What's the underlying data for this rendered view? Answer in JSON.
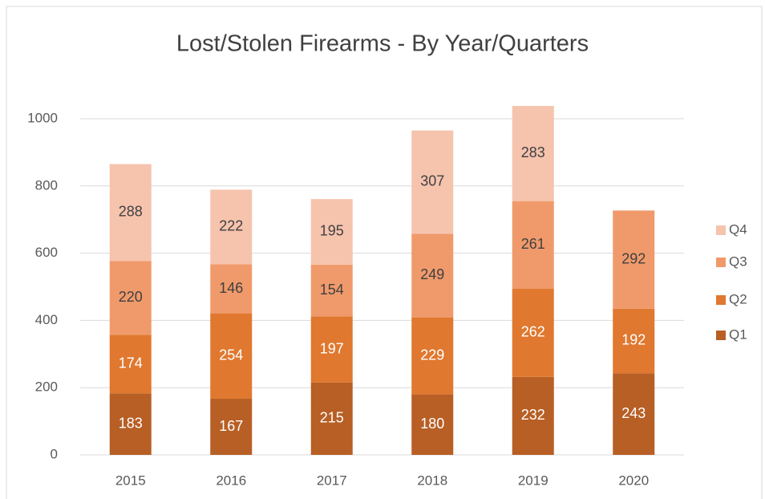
{
  "chart_data": {
    "type": "bar",
    "stacked": true,
    "title": "Lost/Stolen Firearms - By Year/Quarters",
    "categories": [
      "2015",
      "2016",
      "2017",
      "2018",
      "2019",
      "2020"
    ],
    "series": [
      {
        "name": "Q1",
        "color": "#b85f25",
        "values": [
          183,
          167,
          215,
          180,
          232,
          243
        ]
      },
      {
        "name": "Q2",
        "color": "#e0782f",
        "values": [
          174,
          254,
          197,
          229,
          262,
          192
        ]
      },
      {
        "name": "Q3",
        "color": "#f09a6b",
        "values": [
          220,
          146,
          154,
          249,
          261,
          292
        ]
      },
      {
        "name": "Q4",
        "color": "#f6c3ad",
        "values": [
          288,
          222,
          195,
          307,
          283,
          null
        ]
      }
    ],
    "ylim": [
      0,
      1000
    ],
    "yticks": [
      0,
      200,
      400,
      600,
      800,
      1000
    ],
    "grid": true,
    "legend": "right"
  }
}
